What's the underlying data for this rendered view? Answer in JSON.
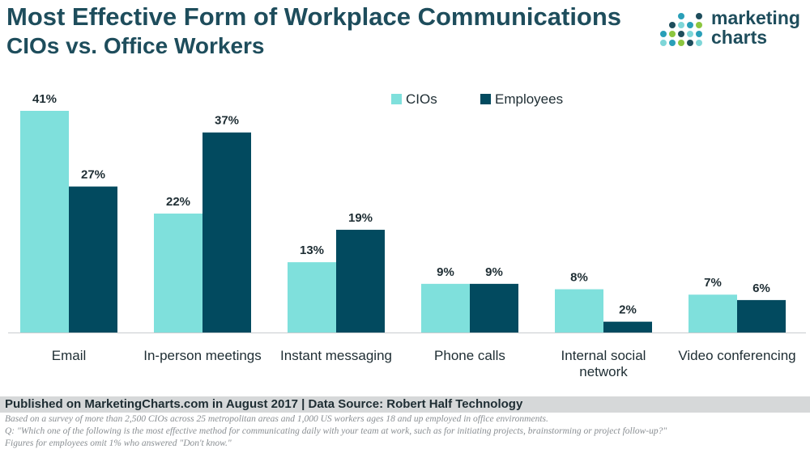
{
  "header": {
    "title": "Most Effective Form of Workplace Communications",
    "subtitle": "CIOs vs. Office Workers"
  },
  "logo": {
    "line1": "marketing",
    "line2": "charts",
    "dot_colors": [
      "#7ed6d8",
      "#2a9fb8",
      "#8cc63f",
      "#1e4d5c"
    ]
  },
  "chart_data": {
    "type": "bar",
    "categories": [
      [
        "Email"
      ],
      [
        "In-person meetings"
      ],
      [
        "Instant messaging"
      ],
      [
        "Phone calls"
      ],
      [
        "Internal social",
        "network"
      ],
      [
        "Video conferencing"
      ]
    ],
    "series": [
      {
        "name": "CIOs",
        "values": [
          41,
          22,
          13,
          9,
          8,
          7
        ],
        "color": "#7fe0dc"
      },
      {
        "name": "Employees",
        "values": [
          27,
          37,
          19,
          9,
          2,
          6
        ],
        "color": "#024a5f"
      }
    ],
    "value_suffix": "%",
    "ylim": [
      0,
      41
    ],
    "grid": false,
    "legend_position": "top-right",
    "title": "Most Effective Form of Workplace Communications",
    "subtitle": "CIOs vs. Office Workers",
    "xlabel": "",
    "ylabel": ""
  },
  "footer": {
    "published": "Published on MarketingCharts.com in August 2017 | Data Source: Robert Half Technology",
    "note1": "Based on a survey of more than 2,500 CIOs across 25 metropolitan areas and 1,000 US workers ages 18 and up employed in office environments.",
    "note2": "Q: \"Which one of the following is the most effective method for communicating daily with your team at work, such as for initiating projects, brainstorming or project follow-up?\"",
    "note3": "Figures for employees omit 1% who answered \"Don't know.\""
  }
}
